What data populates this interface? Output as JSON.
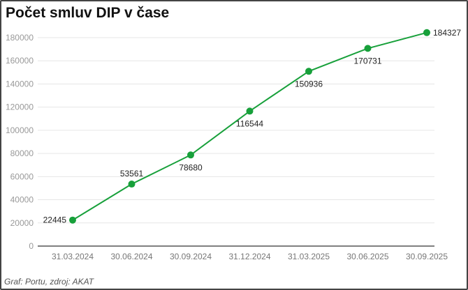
{
  "chart_data": {
    "type": "line",
    "title": "Počet smluv DIP v čase",
    "source": "Graf: Portu, zdroj: AKAT",
    "categories": [
      "31.03.2024",
      "30.06.2024",
      "30.09.2024",
      "31.12.2024",
      "31.03.2025",
      "30.06.2025",
      "30.09.2025"
    ],
    "values": [
      22445,
      53561,
      78680,
      116544,
      150936,
      170731,
      184327
    ],
    "data_labels": [
      "22445",
      "53561",
      "78680",
      "116544",
      "150936",
      "170731",
      "184327"
    ],
    "ylim": [
      0,
      180000
    ],
    "yticks": [
      0,
      20000,
      40000,
      60000,
      80000,
      100000,
      120000,
      140000,
      160000,
      180000
    ],
    "grid": true,
    "xlabel": "",
    "ylabel": "",
    "colors": {
      "line": "#17a03a",
      "grid": "#e6e6e6",
      "axis": "#555555",
      "tick_label": "#999999"
    }
  }
}
